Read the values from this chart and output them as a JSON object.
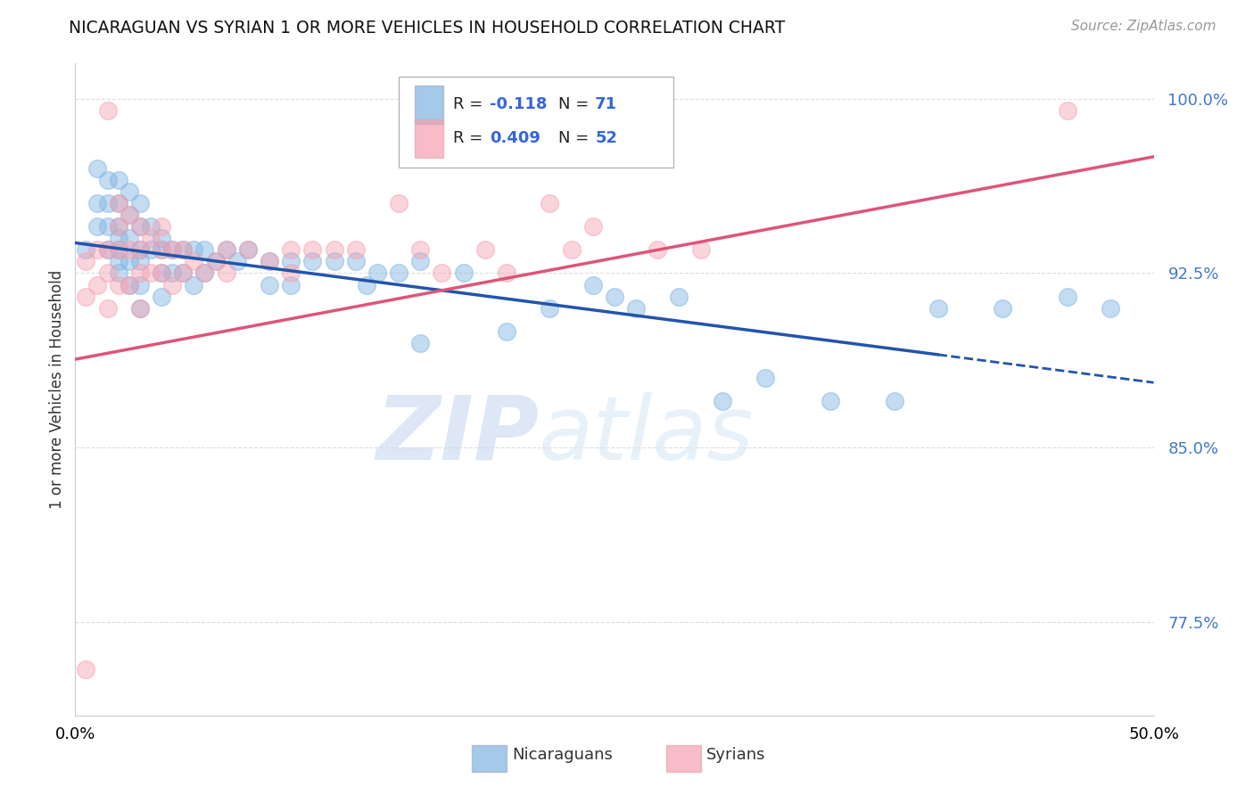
{
  "title": "NICARAGUAN VS SYRIAN 1 OR MORE VEHICLES IN HOUSEHOLD CORRELATION CHART",
  "source": "Source: ZipAtlas.com",
  "ylabel": "1 or more Vehicles in Household",
  "xlim": [
    0.0,
    0.5
  ],
  "ylim": [
    0.735,
    1.015
  ],
  "yticks": [
    0.775,
    0.85,
    0.925,
    1.0
  ],
  "ytick_labels": [
    "77.5%",
    "85.0%",
    "92.5%",
    "100.0%"
  ],
  "blue_color": "#7EB3E0",
  "pink_color": "#F4A0B0",
  "line_blue": "#2255AA",
  "line_pink": "#DD5577",
  "blue_line_x0": 0.0,
  "blue_line_y0": 0.938,
  "blue_line_x1": 0.5,
  "blue_line_y1": 0.878,
  "blue_line_solid_end": 0.4,
  "pink_line_x0": 0.0,
  "pink_line_y0": 0.888,
  "pink_line_x1": 0.5,
  "pink_line_y1": 0.975,
  "watermark_zip": "ZIP",
  "watermark_atlas": "atlas",
  "background_color": "#FFFFFF",
  "grid_color": "#CCCCCC",
  "blue_scatter_x": [
    0.005,
    0.01,
    0.01,
    0.01,
    0.015,
    0.015,
    0.015,
    0.015,
    0.02,
    0.02,
    0.02,
    0.02,
    0.02,
    0.02,
    0.02,
    0.025,
    0.025,
    0.025,
    0.025,
    0.025,
    0.03,
    0.03,
    0.03,
    0.03,
    0.03,
    0.03,
    0.035,
    0.035,
    0.04,
    0.04,
    0.04,
    0.04,
    0.045,
    0.045,
    0.05,
    0.05,
    0.055,
    0.055,
    0.06,
    0.06,
    0.065,
    0.07,
    0.075,
    0.08,
    0.09,
    0.09,
    0.1,
    0.1,
    0.11,
    0.12,
    0.13,
    0.135,
    0.14,
    0.15,
    0.16,
    0.18,
    0.2,
    0.22,
    0.24,
    0.25,
    0.28,
    0.3,
    0.32,
    0.35,
    0.38,
    0.4,
    0.43,
    0.46,
    0.48,
    0.16,
    0.26
  ],
  "blue_scatter_y": [
    0.935,
    0.97,
    0.955,
    0.945,
    0.965,
    0.955,
    0.945,
    0.935,
    0.965,
    0.955,
    0.945,
    0.935,
    0.925,
    0.94,
    0.93,
    0.96,
    0.95,
    0.94,
    0.93,
    0.92,
    0.955,
    0.945,
    0.935,
    0.93,
    0.92,
    0.91,
    0.945,
    0.935,
    0.94,
    0.935,
    0.925,
    0.915,
    0.935,
    0.925,
    0.935,
    0.925,
    0.935,
    0.92,
    0.935,
    0.925,
    0.93,
    0.935,
    0.93,
    0.935,
    0.93,
    0.92,
    0.93,
    0.92,
    0.93,
    0.93,
    0.93,
    0.92,
    0.925,
    0.925,
    0.93,
    0.925,
    0.9,
    0.91,
    0.92,
    0.915,
    0.915,
    0.87,
    0.88,
    0.87,
    0.87,
    0.91,
    0.91,
    0.915,
    0.91,
    0.895,
    0.91
  ],
  "pink_scatter_x": [
    0.005,
    0.005,
    0.01,
    0.01,
    0.015,
    0.015,
    0.015,
    0.02,
    0.02,
    0.02,
    0.02,
    0.025,
    0.025,
    0.025,
    0.03,
    0.03,
    0.03,
    0.03,
    0.035,
    0.035,
    0.04,
    0.04,
    0.04,
    0.045,
    0.045,
    0.05,
    0.05,
    0.055,
    0.06,
    0.065,
    0.07,
    0.07,
    0.08,
    0.09,
    0.1,
    0.1,
    0.11,
    0.12,
    0.13,
    0.15,
    0.16,
    0.17,
    0.19,
    0.2,
    0.22,
    0.23,
    0.24,
    0.27,
    0.29,
    0.005,
    0.015,
    0.46
  ],
  "pink_scatter_y": [
    0.93,
    0.915,
    0.935,
    0.92,
    0.935,
    0.925,
    0.91,
    0.955,
    0.945,
    0.935,
    0.92,
    0.95,
    0.935,
    0.92,
    0.945,
    0.935,
    0.925,
    0.91,
    0.94,
    0.925,
    0.945,
    0.935,
    0.925,
    0.935,
    0.92,
    0.935,
    0.925,
    0.93,
    0.925,
    0.93,
    0.935,
    0.925,
    0.935,
    0.93,
    0.935,
    0.925,
    0.935,
    0.935,
    0.935,
    0.955,
    0.935,
    0.925,
    0.935,
    0.925,
    0.955,
    0.935,
    0.945,
    0.935,
    0.935,
    0.755,
    0.995,
    0.995
  ]
}
